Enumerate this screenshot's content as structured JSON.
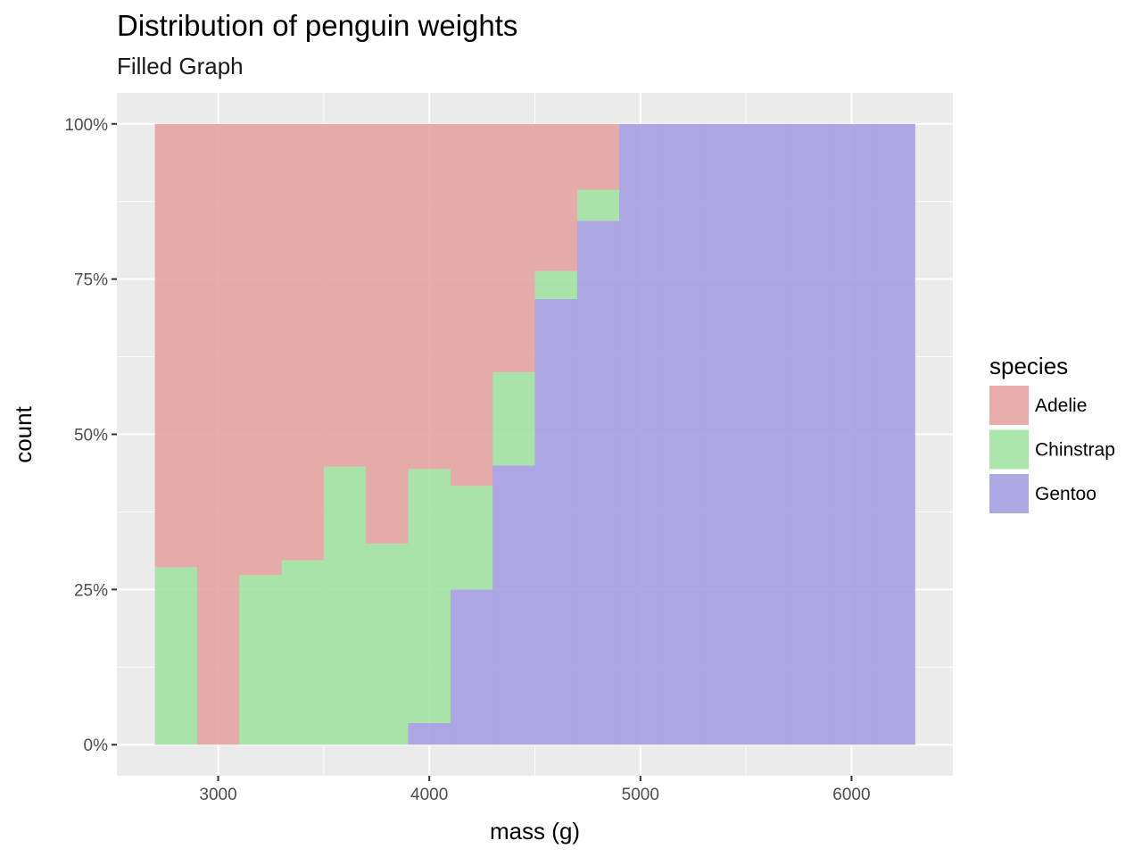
{
  "chart_data": {
    "type": "histogram",
    "position": "fill",
    "title": "Distribution of penguin weights",
    "subtitle": "Filled Graph",
    "xlabel": "mass (g)",
    "ylabel": "count",
    "xlim": [
      2520,
      6480
    ],
    "ylim": [
      -0.05,
      1.05
    ],
    "x_ticks": [
      3000,
      4000,
      5000,
      6000
    ],
    "x_tick_labels": [
      "3000",
      "4000",
      "5000",
      "6000"
    ],
    "y_ticks": [
      0,
      0.25,
      0.5,
      0.75,
      1
    ],
    "y_tick_labels": [
      "0%",
      "25%",
      "50%",
      "75%",
      "100%"
    ],
    "grid": true,
    "legend": {
      "title": "species",
      "position": "right"
    },
    "bin_edges": [
      2700,
      2900,
      3100,
      3300,
      3500,
      3700,
      3900,
      4100,
      4300,
      4500,
      4700,
      4900,
      5100,
      5300,
      5500,
      5700,
      5900,
      6100,
      6300
    ],
    "series": [
      {
        "name": "Adelie",
        "color": "#e4a4a2",
        "values": [
          0.714,
          1.0,
          0.727,
          0.703,
          0.552,
          0.676,
          0.556,
          0.583,
          0.4,
          0.237,
          0.106,
          0,
          0,
          0,
          0,
          0,
          0,
          0
        ]
      },
      {
        "name": "Chinstrap",
        "color": "#a2e2a2",
        "values": [
          0.286,
          0,
          0.273,
          0.297,
          0.448,
          0.324,
          0.409,
          0.167,
          0.15,
          0.045,
          0.05,
          0,
          0,
          0,
          0,
          0,
          0,
          0
        ]
      },
      {
        "name": "Gentoo",
        "color": "#a5a0e2",
        "values": [
          0,
          0,
          0,
          0,
          0,
          0,
          0.035,
          0.25,
          0.45,
          0.718,
          0.844,
          1.0,
          1.0,
          1.0,
          1.0,
          1.0,
          1.0,
          1.0
        ]
      }
    ]
  }
}
